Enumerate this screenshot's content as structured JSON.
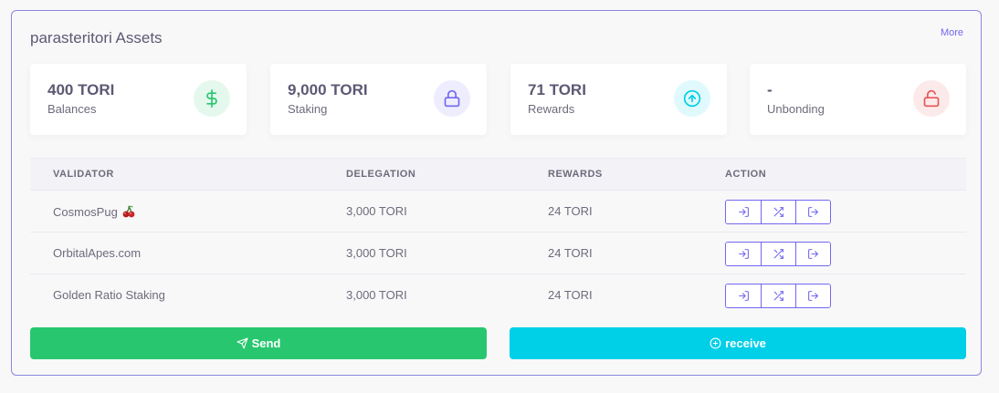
{
  "card": {
    "title": "parasteritori Assets",
    "more_label": "More"
  },
  "stats": [
    {
      "value": "400 TORI",
      "label": "Balances",
      "icon": "dollar-icon",
      "color": "#28c76f",
      "bg": "#e5f8ed"
    },
    {
      "value": "9,000 TORI",
      "label": "Staking",
      "icon": "lock-icon",
      "color": "#7367f0",
      "bg": "#eeedfd"
    },
    {
      "value": "71 TORI",
      "label": "Rewards",
      "icon": "arrow-up-circle-icon",
      "color": "#00cfe8",
      "bg": "#e0f9fc"
    },
    {
      "value": "-",
      "label": "Unbonding",
      "icon": "unlock-icon",
      "color": "#ea5455",
      "bg": "#fceaea"
    }
  ],
  "table": {
    "headers": {
      "validator": "Validator",
      "delegation": "Delegation",
      "rewards": "Rewards",
      "action": "Action"
    },
    "rows": [
      {
        "validator": "CosmosPug",
        "delegation": "3,000 TORI",
        "rewards": "24 TORI"
      },
      {
        "validator": "OrbitalApes.com",
        "delegation": "3,000 TORI",
        "rewards": "24 TORI"
      },
      {
        "validator": "Golden Ratio Staking",
        "delegation": "3,000 TORI",
        "rewards": "24 TORI"
      }
    ]
  },
  "buttons": {
    "send_label": "Send",
    "receive_label": "receive"
  }
}
